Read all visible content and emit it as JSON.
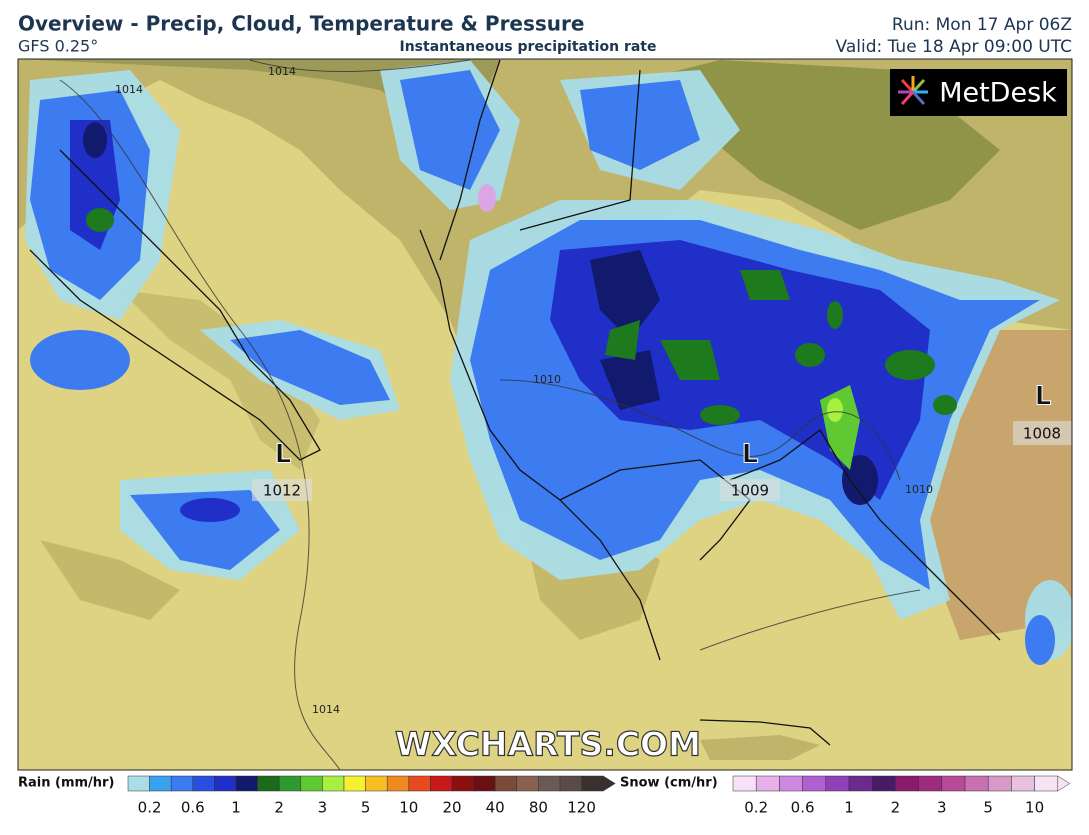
{
  "header": {
    "title": "Overview - Precip, Cloud, Temperature & Pressure",
    "model": "GFS 0.25°",
    "subtitle": "Instantaneous precipitation rate",
    "run": "Run: Mon 17 Apr 06Z",
    "valid": "Valid: Tue 18 Apr 09:00 UTC"
  },
  "map": {
    "logo": "MetDesk",
    "watermark": "WXCHARTS.COM",
    "pressure_centers": [
      {
        "symbol": "L",
        "value": "1012"
      },
      {
        "symbol": "L",
        "value": "1009"
      },
      {
        "symbol": "L",
        "value": "1008"
      }
    ],
    "isobar_labels": [
      "1014",
      "1014",
      "1010",
      "1010",
      "1014"
    ]
  },
  "legend": {
    "rain": {
      "title": "Rain (mm/hr)",
      "ticks": [
        "0.2",
        "0.6",
        "1",
        "2",
        "3",
        "5",
        "10",
        "20",
        "40",
        "80",
        "120"
      ]
    },
    "snow": {
      "title": "Snow (cm/hr)",
      "ticks": [
        "0.2",
        "0.6",
        "1",
        "2",
        "3",
        "5",
        "10"
      ]
    }
  }
}
